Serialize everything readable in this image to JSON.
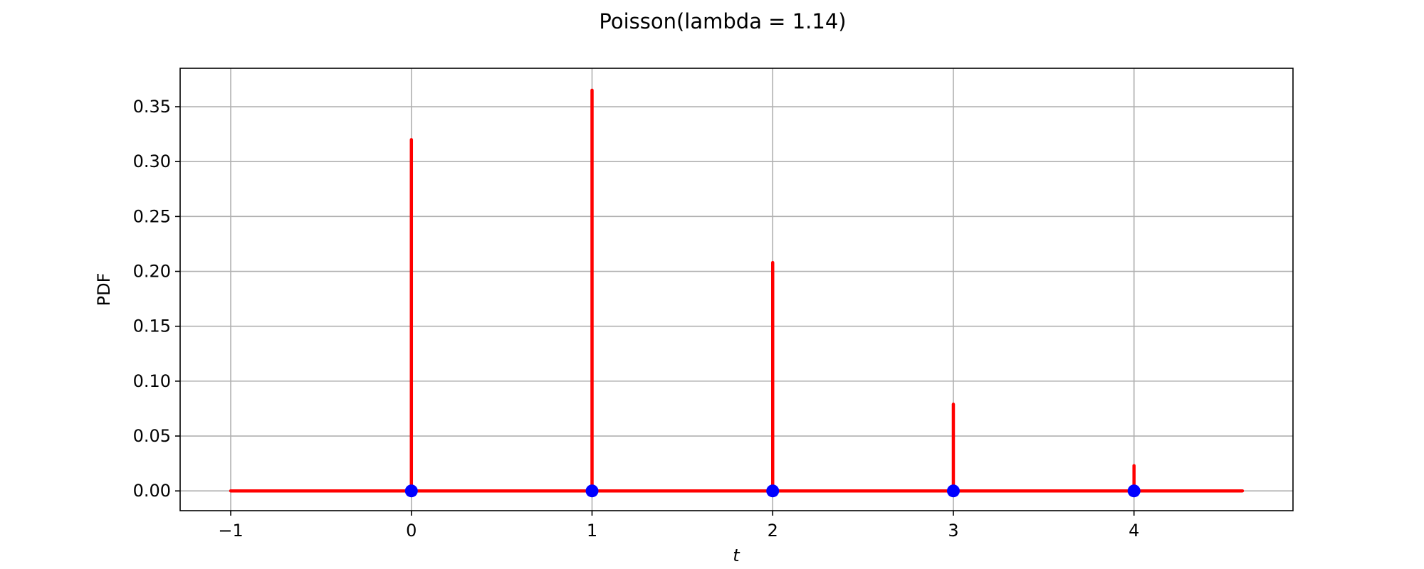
{
  "chart_data": {
    "type": "stem",
    "title": "Poisson(lambda = 1.14)",
    "xlabel": "t",
    "ylabel": "PDF",
    "xlim": [
      -1.28,
      4.88
    ],
    "ylim": [
      -0.018,
      0.385
    ],
    "xticks": [
      {
        "value": -1,
        "label": "−1"
      },
      {
        "value": 0,
        "label": "0"
      },
      {
        "value": 1,
        "label": "1"
      },
      {
        "value": 2,
        "label": "2"
      },
      {
        "value": 3,
        "label": "3"
      },
      {
        "value": 4,
        "label": "4"
      }
    ],
    "yticks": [
      {
        "value": 0.0,
        "label": "0.00"
      },
      {
        "value": 0.05,
        "label": "0.05"
      },
      {
        "value": 0.1,
        "label": "0.10"
      },
      {
        "value": 0.15,
        "label": "0.15"
      },
      {
        "value": 0.2,
        "label": "0.20"
      },
      {
        "value": 0.25,
        "label": "0.25"
      },
      {
        "value": 0.3,
        "label": "0.30"
      },
      {
        "value": 0.35,
        "label": "0.35"
      }
    ],
    "grid": true,
    "baseline": {
      "x_start": -1,
      "x_end": 4.6,
      "y": 0
    },
    "stems": [
      {
        "x": 0,
        "y": 0.32
      },
      {
        "x": 1,
        "y": 0.365
      },
      {
        "x": 2,
        "y": 0.208
      },
      {
        "x": 3,
        "y": 0.079
      },
      {
        "x": 4,
        "y": 0.023
      }
    ],
    "markers": [
      {
        "x": 0,
        "y": 0
      },
      {
        "x": 1,
        "y": 0
      },
      {
        "x": 2,
        "y": 0
      },
      {
        "x": 3,
        "y": 0
      },
      {
        "x": 4,
        "y": 0
      }
    ],
    "colors": {
      "stem": "#ff0000",
      "marker": "#0000ff",
      "grid": "#b0b0b0",
      "frame": "#000000"
    }
  }
}
